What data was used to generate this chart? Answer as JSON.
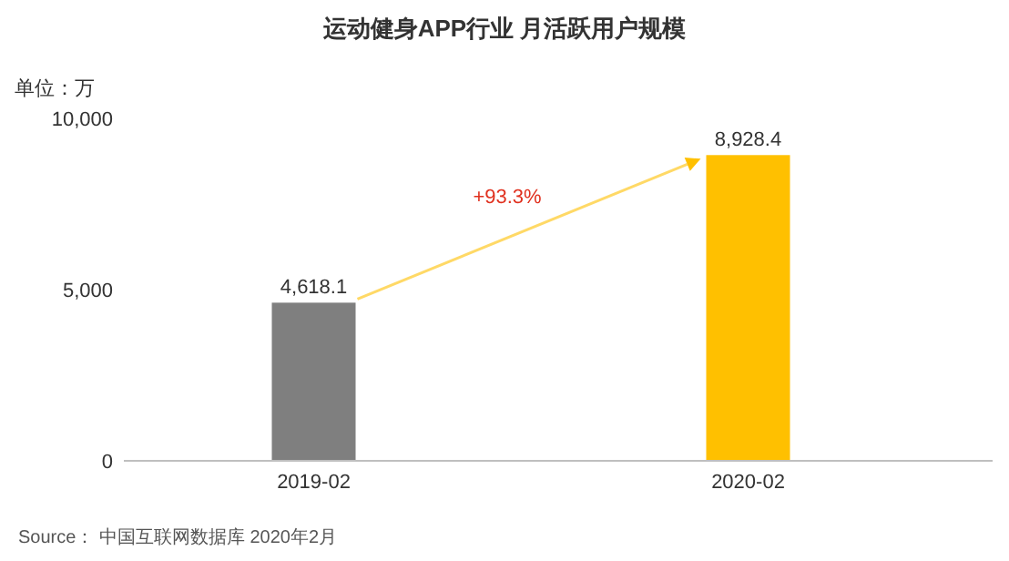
{
  "chart_data": {
    "type": "bar",
    "title": "运动健身APP行业 月活跃用户规模",
    "ylabel": "单位：万",
    "categories": [
      "2019-02",
      "2020-02"
    ],
    "values": [
      4618.1,
      8928.4
    ],
    "colors": [
      "#7f7f7f",
      "#ffc000"
    ],
    "value_labels": [
      "4,618.1",
      "8,928.4"
    ],
    "ylim": [
      0,
      10000
    ],
    "yticks": [
      {
        "value": 0,
        "label": "0"
      },
      {
        "value": 5000,
        "label": "5,000"
      },
      {
        "value": 10000,
        "label": "10,000"
      }
    ],
    "grid": false,
    "annotations": [
      "+93.3%",
      "Source： 中国互联网数据库 2020年2月"
    ]
  }
}
